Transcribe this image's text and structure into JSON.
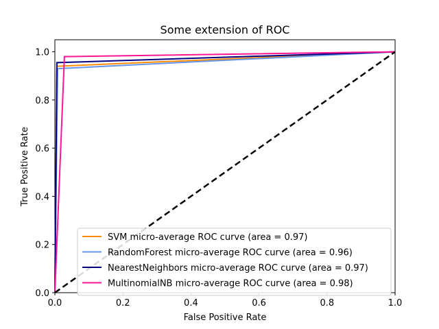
{
  "chart_data": {
    "type": "line",
    "title": "Some extension of ROC",
    "xlabel": "False Positive Rate",
    "ylabel": "True Positive Rate",
    "xlim": [
      0.0,
      1.0
    ],
    "ylim": [
      0.0,
      1.05
    ],
    "x_ticks": [
      0.0,
      0.2,
      0.4,
      0.6,
      0.8,
      1.0
    ],
    "x_tick_labels": [
      "0.0",
      "0.2",
      "0.4",
      "0.6",
      "0.8",
      "1.0"
    ],
    "y_ticks": [
      0.0,
      0.2,
      0.4,
      0.6,
      0.8,
      1.0
    ],
    "y_tick_labels": [
      "0.0",
      "0.2",
      "0.4",
      "0.6",
      "0.8",
      "1.0"
    ],
    "grid": false,
    "legend_position": "lower-right",
    "series": [
      {
        "name": "SVM micro-average ROC curve (area = 0.97)",
        "color": "#ff8c00",
        "x": [
          0.0,
          0.006,
          1.0
        ],
        "y": [
          0.0,
          0.94,
          1.0
        ]
      },
      {
        "name": "RandomForest micro-average ROC curve (area = 0.96)",
        "color": "#6495ed",
        "x": [
          0.0,
          0.008,
          1.0
        ],
        "y": [
          0.0,
          0.93,
          1.0
        ]
      },
      {
        "name": "NearestNeighbors micro-average ROC curve (area = 0.97)",
        "color": "#000080",
        "x": [
          0.0,
          0.006,
          1.0
        ],
        "y": [
          0.0,
          0.955,
          1.0
        ]
      },
      {
        "name": "MultinomialNB micro-average ROC curve (area = 0.98)",
        "color": "#ff1493",
        "x": [
          0.0,
          0.028,
          1.0
        ],
        "y": [
          0.0,
          0.98,
          1.0
        ]
      }
    ],
    "reference_line": {
      "x": [
        0.0,
        1.0
      ],
      "y": [
        0.0,
        1.0
      ],
      "color": "#000000",
      "style": "dashed"
    }
  }
}
